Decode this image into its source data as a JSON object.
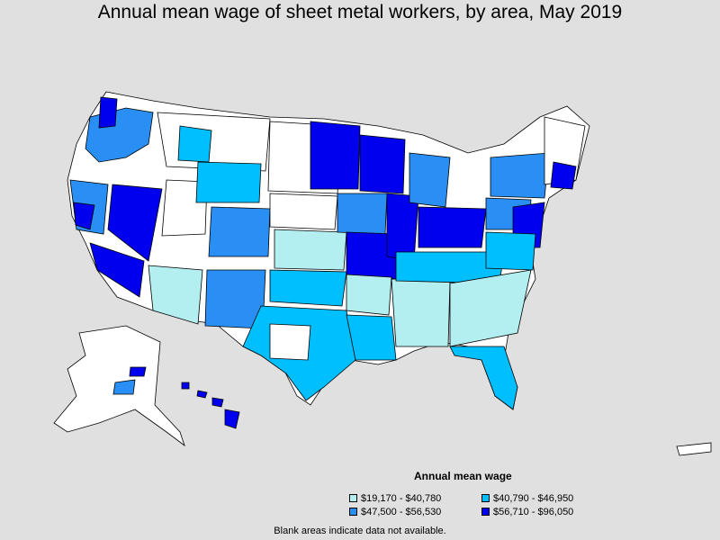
{
  "title": "Annual mean wage of sheet metal workers, by area, May 2019",
  "legend": {
    "title": "Annual mean wage",
    "items": [
      {
        "label": "$19,170 - $40,780",
        "color": "#b3eef0"
      },
      {
        "label": "$40,790 - $46,950",
        "color": "#00bfff"
      },
      {
        "label": "$47,500 - $56,530",
        "color": "#2a8ff5"
      },
      {
        "label": "$56,710 - $96,050",
        "color": "#0000ee"
      }
    ]
  },
  "note": "Blank areas indicate data not available.",
  "colors": {
    "background": "#e0e0e0",
    "no_data": "#ffffff",
    "border": "#000000"
  }
}
